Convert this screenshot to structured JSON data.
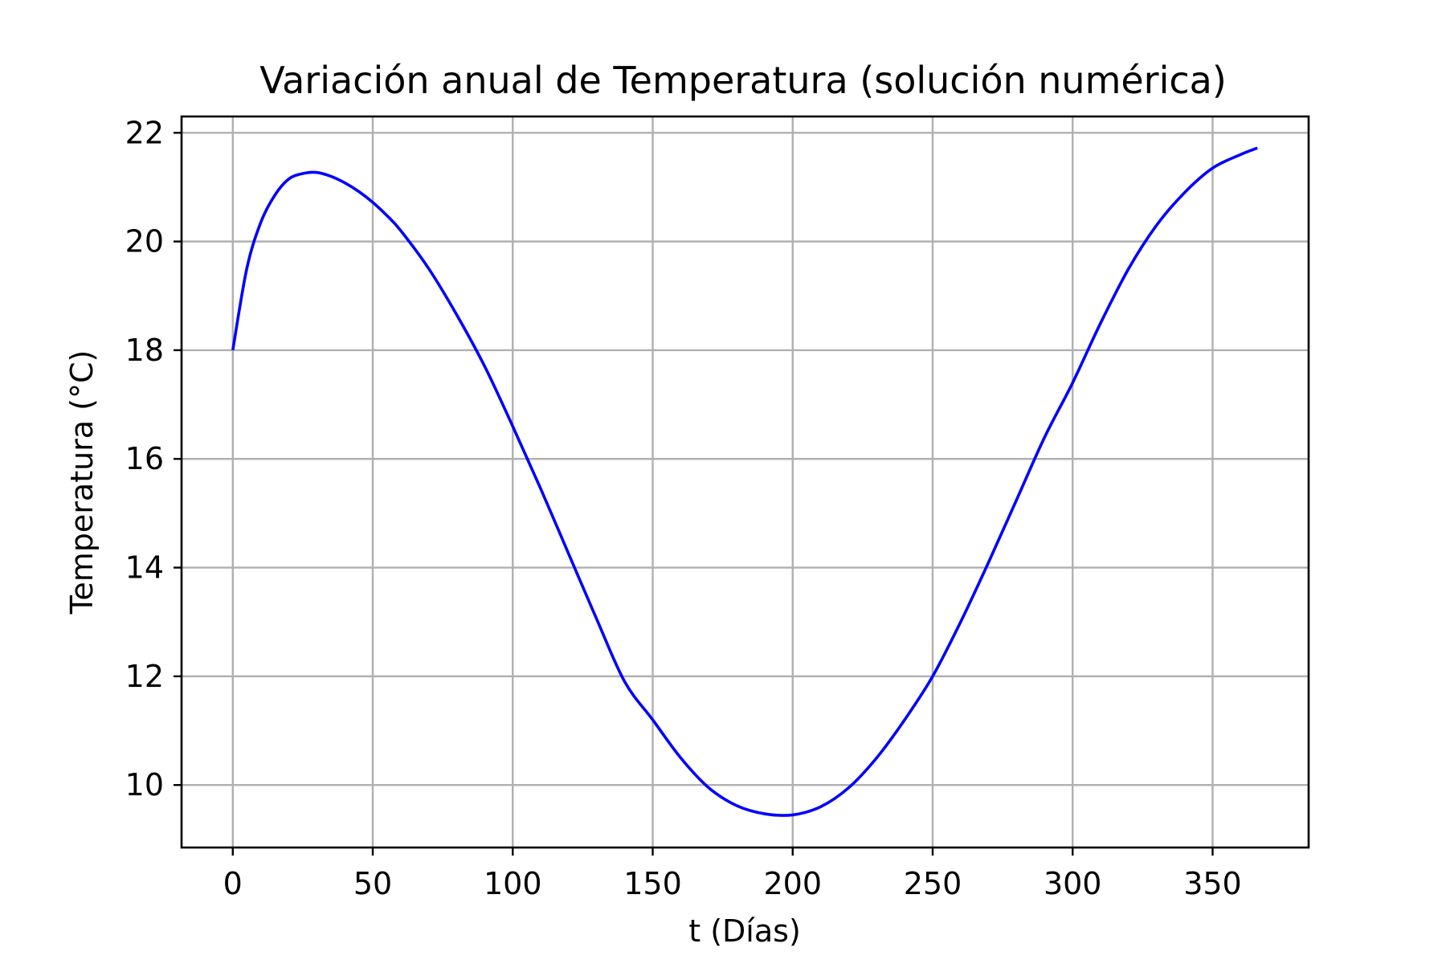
{
  "chart_data": {
    "type": "line",
    "title": "Variación anual de Temperatura (solución numérica)",
    "xlabel": "t (Días)",
    "ylabel": "Temperatura (°C)",
    "xlim": [
      -18.3,
      384.3
    ],
    "ylim": [
      8.85,
      22.3
    ],
    "xticks": [
      0,
      50,
      100,
      150,
      200,
      250,
      300,
      350
    ],
    "yticks": [
      10,
      12,
      14,
      16,
      18,
      20,
      22
    ],
    "grid": true,
    "series": [
      {
        "color": "#0000ff",
        "x": [
          0,
          5,
          10,
          15,
          20,
          25,
          30,
          35,
          40,
          45,
          50,
          55,
          60,
          70,
          80,
          90,
          100,
          110,
          120,
          130,
          140,
          150,
          160,
          170,
          180,
          190,
          200,
          210,
          220,
          230,
          240,
          250,
          260,
          270,
          280,
          290,
          300,
          310,
          320,
          330,
          340,
          350,
          360,
          366
        ],
        "y": [
          18.0,
          19.5,
          20.35,
          20.85,
          21.15,
          21.25,
          21.27,
          21.2,
          21.08,
          20.92,
          20.72,
          20.48,
          20.2,
          19.5,
          18.65,
          17.7,
          16.6,
          15.45,
          14.25,
          13.05,
          11.9,
          11.2,
          10.5,
          9.95,
          9.62,
          9.47,
          9.45,
          9.6,
          9.95,
          10.5,
          11.2,
          12.0,
          13.0,
          14.1,
          15.25,
          16.4,
          17.4,
          18.5,
          19.5,
          20.3,
          20.9,
          21.35,
          21.6,
          21.72
        ]
      }
    ]
  }
}
